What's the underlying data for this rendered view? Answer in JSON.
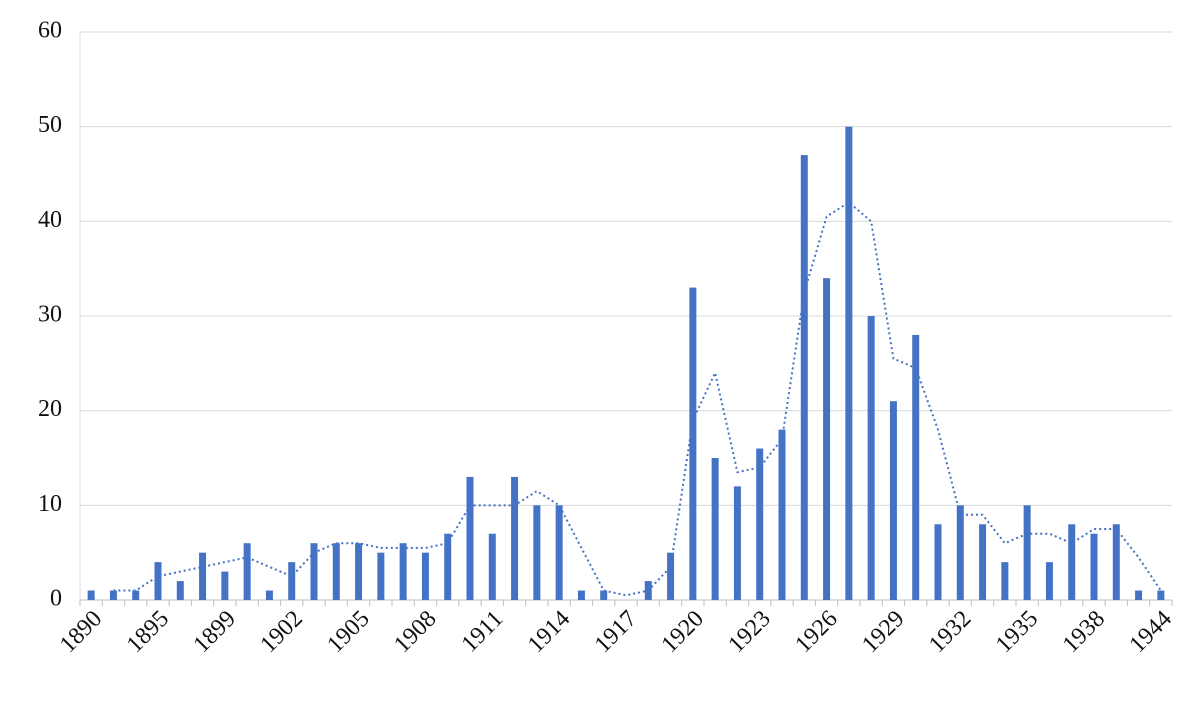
{
  "chart_data": {
    "type": "bar",
    "categories": [
      "1890",
      null,
      null,
      "1895",
      null,
      null,
      "1899",
      null,
      null,
      "1902",
      null,
      null,
      "1905",
      null,
      null,
      "1908",
      null,
      null,
      "1911",
      null,
      null,
      "1914",
      null,
      null,
      "1917",
      null,
      null,
      "1920",
      null,
      null,
      "1923",
      null,
      null,
      "1926",
      null,
      null,
      "1929",
      null,
      null,
      "1932",
      null,
      null,
      "1935",
      null,
      null,
      "1938",
      null,
      null,
      "1944"
    ],
    "values": [
      1,
      1,
      1,
      4,
      2,
      5,
      3,
      6,
      1,
      4,
      6,
      6,
      6,
      5,
      6,
      5,
      7,
      13,
      7,
      13,
      10,
      10,
      1,
      1,
      0,
      2,
      5,
      33,
      15,
      12,
      16,
      18,
      47,
      34,
      50,
      30,
      21,
      28,
      8,
      10,
      8,
      4,
      10,
      4,
      8,
      7,
      8,
      1,
      1
    ],
    "color": "#4472c4",
    "trendline": {
      "color": "#4472c4",
      "style": "dotted",
      "values": [
        null,
        1,
        1,
        2.5,
        3,
        3.5,
        4,
        4.5,
        3.5,
        2.5,
        5,
        6,
        6,
        5.5,
        5.5,
        5.5,
        6,
        10,
        10,
        10,
        11.5,
        10,
        5.5,
        1,
        0.5,
        1,
        3.5,
        19,
        24,
        13.5,
        14,
        17,
        32.5,
        40.5,
        42,
        40,
        25.5,
        24.5,
        18,
        9,
        9,
        6,
        7,
        7,
        6,
        7.5,
        7.5,
        4.5,
        1
      ]
    },
    "ylim": [
      0,
      60
    ],
    "yticks": [
      0,
      10,
      20,
      30,
      40,
      50,
      60
    ],
    "grid": true
  }
}
